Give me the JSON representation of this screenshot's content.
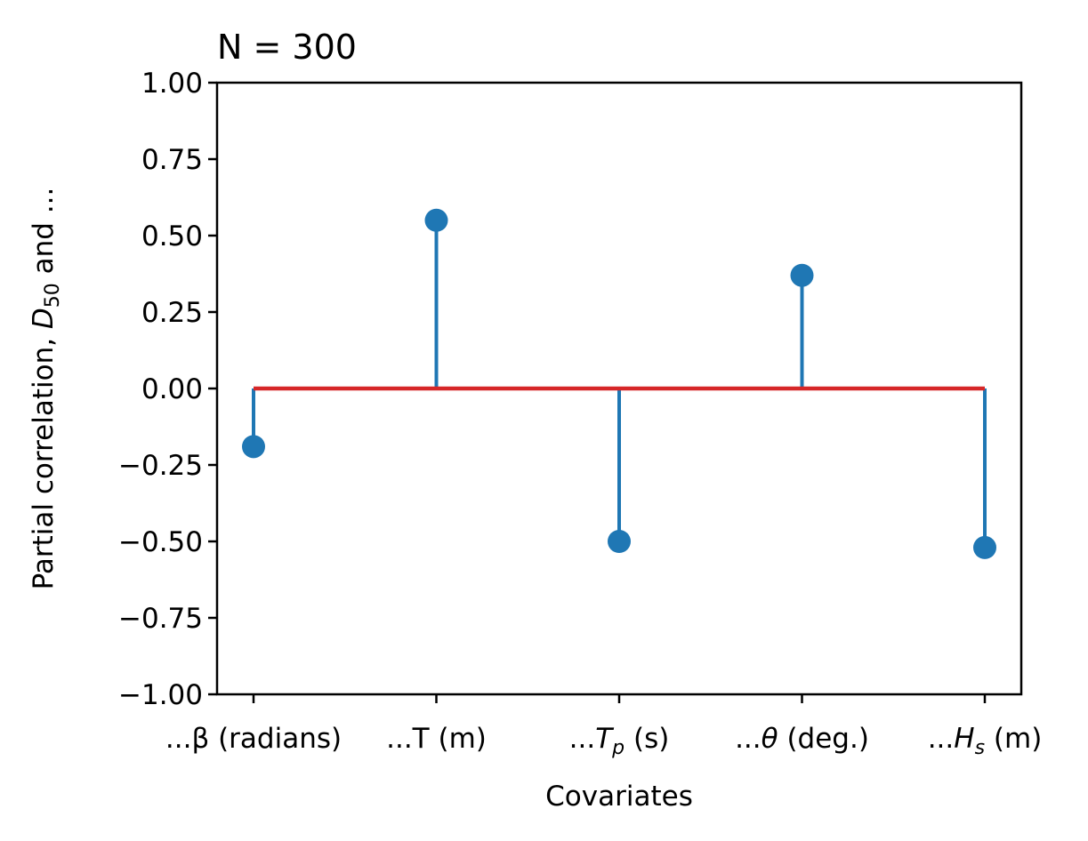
{
  "chart_data": {
    "type": "stem",
    "title": "N = 300",
    "xlabel": "Covariates",
    "ylabel_parts": [
      "Partial correlation, ",
      "D",
      "50",
      " and ..."
    ],
    "categories": [
      {
        "text": "...β (radians)"
      },
      {
        "text": "...T (m)"
      },
      {
        "prefix": "...",
        "symbol": "T",
        "sub": "p",
        "suffix": " (s)"
      },
      {
        "prefix": "...",
        "symbol": "θ",
        "suffix": " (deg.)"
      },
      {
        "prefix": "...",
        "symbol": "H",
        "sub": "s",
        "suffix": " (m)"
      }
    ],
    "values": [
      -0.19,
      0.55,
      -0.5,
      0.37,
      -0.52
    ],
    "ylim": [
      -1.0,
      1.0
    ],
    "yticks": [
      "1.00",
      "0.75",
      "0.50",
      "0.25",
      "0.00",
      "−0.25",
      "−0.50",
      "−0.75",
      "−1.00"
    ],
    "ytick_values": [
      1.0,
      0.75,
      0.5,
      0.25,
      0.0,
      -0.25,
      -0.5,
      -0.75,
      -1.0
    ],
    "baseline": 0.0,
    "grid": false,
    "colors": {
      "stem": "#1f77b4",
      "baseline": "#d62728",
      "axes": "#000000"
    }
  }
}
